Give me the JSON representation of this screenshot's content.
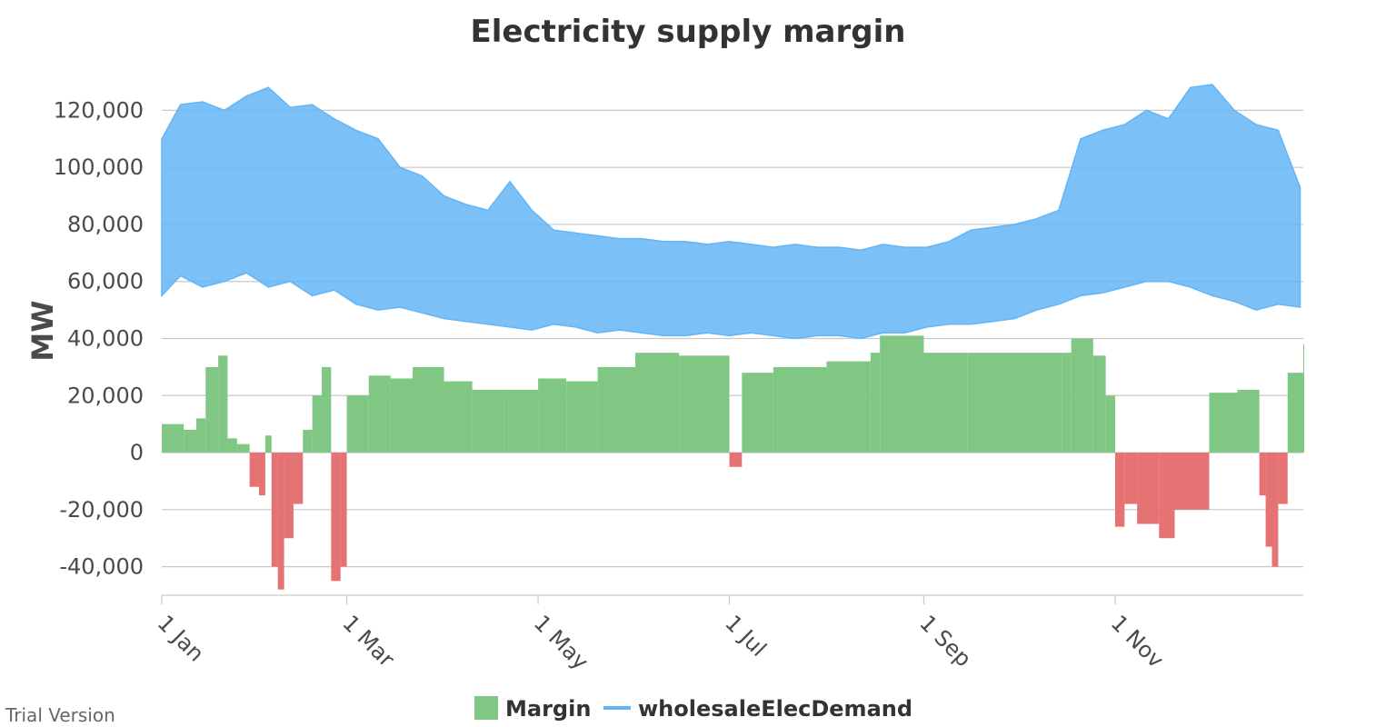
{
  "chart_data": {
    "type": "bar",
    "title": "Electricity supply margin",
    "xlabel": "",
    "ylabel": "MW",
    "ylim": [
      -50000,
      130000
    ],
    "xlim": [
      "2019-01-01",
      "2019-12-31"
    ],
    "yticks": [
      "-40,000",
      "-20,000",
      "0",
      "20,000",
      "40,000",
      "60,000",
      "80,000",
      "100,000",
      "120,000"
    ],
    "ytick_values": [
      -40000,
      -20000,
      0,
      20000,
      40000,
      60000,
      80000,
      100000,
      120000
    ],
    "xticks": [
      "1 Jan",
      "1 Mar",
      "1 May",
      "1 Jul",
      "1 Sep",
      "1 Nov"
    ],
    "xtick_dates": [
      "2019-01-01",
      "2019-03-01",
      "2019-05-01",
      "2019-07-01",
      "2019-09-01",
      "2019-11-01"
    ],
    "grid": true,
    "legend_position": "bottom-center",
    "series": [
      {
        "name": "Margin",
        "type": "bar",
        "color": "#80c783",
        "negative_color": "#e57373",
        "small_color": "#ffa726",
        "x": [
          "2019-01-01",
          "2019-01-08",
          "2019-01-12",
          "2019-01-15",
          "2019-01-19",
          "2019-01-22",
          "2019-01-25",
          "2019-01-29",
          "2019-02-01",
          "2019-02-03",
          "2019-02-05",
          "2019-02-07",
          "2019-02-09",
          "2019-02-12",
          "2019-02-15",
          "2019-02-18",
          "2019-02-21",
          "2019-02-24",
          "2019-02-27",
          "2019-03-01",
          "2019-03-08",
          "2019-03-15",
          "2019-03-22",
          "2019-04-01",
          "2019-04-10",
          "2019-04-20",
          "2019-05-01",
          "2019-05-10",
          "2019-05-20",
          "2019-06-01",
          "2019-06-15",
          "2019-07-01",
          "2019-07-05",
          "2019-07-15",
          "2019-08-01",
          "2019-08-15",
          "2019-08-18",
          "2019-09-01",
          "2019-09-15",
          "2019-10-01",
          "2019-10-15",
          "2019-10-18",
          "2019-10-25",
          "2019-10-29",
          "2019-11-01",
          "2019-11-04",
          "2019-11-08",
          "2019-11-15",
          "2019-11-20",
          "2019-12-01",
          "2019-12-10",
          "2019-12-17",
          "2019-12-19",
          "2019-12-21",
          "2019-12-23",
          "2019-12-26",
          "2019-12-31"
        ],
        "y": [
          10000,
          8000,
          12000,
          30000,
          34000,
          5000,
          3000,
          -12000,
          -15000,
          6000,
          -40000,
          -48000,
          -30000,
          -18000,
          8000,
          20000,
          30000,
          -45000,
          -40000,
          20000,
          27000,
          26000,
          30000,
          25000,
          22000,
          22000,
          26000,
          25000,
          30000,
          35000,
          34000,
          -5000,
          28000,
          30000,
          32000,
          35000,
          41000,
          35000,
          35000,
          35000,
          35000,
          40000,
          34000,
          20000,
          -26000,
          -18000,
          -25000,
          -30000,
          -20000,
          21000,
          22000,
          -15000,
          -33000,
          -40000,
          -18000,
          28000,
          38000
        ]
      },
      {
        "name": "wholesaleElecDemand",
        "type": "line",
        "color": "#64b5f6",
        "x": [
          "2019-01-01",
          "2019-01-07",
          "2019-01-14",
          "2019-01-21",
          "2019-01-28",
          "2019-02-04",
          "2019-02-11",
          "2019-02-18",
          "2019-02-25",
          "2019-03-04",
          "2019-03-11",
          "2019-03-18",
          "2019-03-25",
          "2019-04-01",
          "2019-04-08",
          "2019-04-15",
          "2019-04-22",
          "2019-04-29",
          "2019-05-06",
          "2019-05-13",
          "2019-05-20",
          "2019-05-27",
          "2019-06-03",
          "2019-06-10",
          "2019-06-17",
          "2019-06-24",
          "2019-07-01",
          "2019-07-08",
          "2019-07-15",
          "2019-07-22",
          "2019-07-29",
          "2019-08-05",
          "2019-08-12",
          "2019-08-19",
          "2019-08-26",
          "2019-09-02",
          "2019-09-09",
          "2019-09-16",
          "2019-09-23",
          "2019-09-30",
          "2019-10-07",
          "2019-10-14",
          "2019-10-21",
          "2019-10-28",
          "2019-11-04",
          "2019-11-11",
          "2019-11-18",
          "2019-11-25",
          "2019-12-02",
          "2019-12-09",
          "2019-12-16",
          "2019-12-23",
          "2019-12-30"
        ],
        "y_min": [
          55000,
          62000,
          58000,
          60000,
          63000,
          58000,
          60000,
          55000,
          57000,
          52000,
          50000,
          51000,
          49000,
          47000,
          46000,
          45000,
          44000,
          43000,
          45000,
          44000,
          42000,
          43000,
          42000,
          41000,
          41000,
          42000,
          41000,
          42000,
          41000,
          40000,
          41000,
          41000,
          40000,
          42000,
          42000,
          44000,
          45000,
          45000,
          46000,
          47000,
          50000,
          52000,
          55000,
          56000,
          58000,
          60000,
          60000,
          58000,
          55000,
          53000,
          50000,
          52000,
          51000
        ],
        "y_max": [
          110000,
          122000,
          123000,
          120000,
          125000,
          128000,
          121000,
          122000,
          117000,
          113000,
          110000,
          100000,
          97000,
          90000,
          87000,
          85000,
          95000,
          85000,
          78000,
          77000,
          76000,
          75000,
          75000,
          74000,
          74000,
          73000,
          74000,
          73000,
          72000,
          73000,
          72000,
          72000,
          71000,
          73000,
          72000,
          72000,
          74000,
          78000,
          79000,
          80000,
          82000,
          85000,
          110000,
          113000,
          115000,
          120000,
          117000,
          128000,
          129000,
          120000,
          115000,
          113000,
          93000
        ]
      }
    ]
  },
  "legend": {
    "items": [
      {
        "label": "Margin",
        "color": "#80c783"
      },
      {
        "label": "wholesaleElecDemand",
        "color": "#64b5f6"
      }
    ]
  },
  "watermark": "Trial Version"
}
